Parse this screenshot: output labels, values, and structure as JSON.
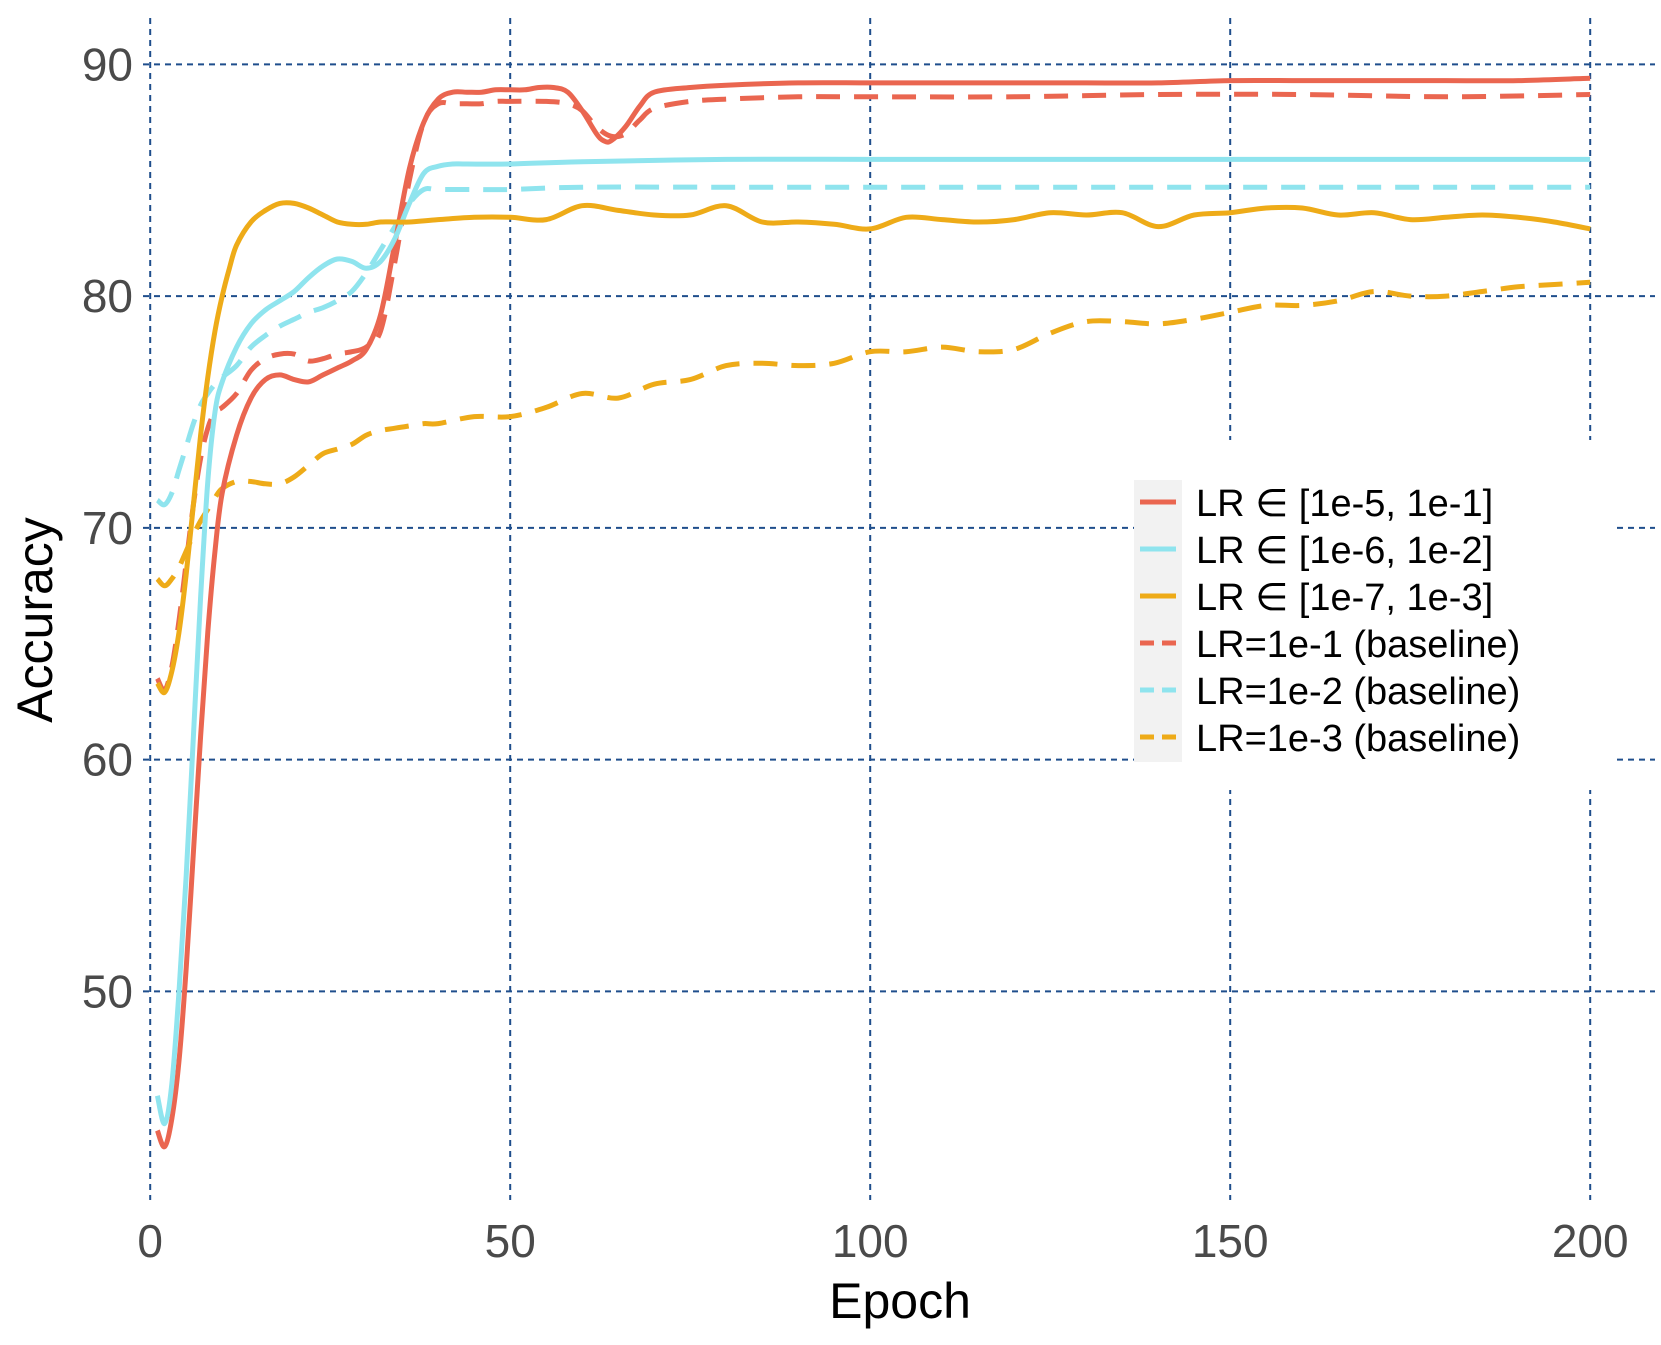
{
  "chart_data": {
    "type": "line",
    "xlabel": "Epoch",
    "ylabel": "Accuracy",
    "xlim": [
      -1,
      209
    ],
    "ylim": [
      41,
      92
    ],
    "xticks": [
      0,
      50,
      100,
      150,
      200
    ],
    "yticks": [
      50,
      60,
      70,
      80,
      90
    ],
    "grid": true,
    "legend_position": "center-right",
    "series": [
      {
        "name": "LR ∈ [1e-5, 1e-1]",
        "color": "#ea6650",
        "style": "solid",
        "x": [
          1,
          2,
          3,
          4,
          5,
          6,
          7,
          8,
          9,
          10,
          12,
          14,
          16,
          18,
          20,
          22,
          24,
          26,
          28,
          30,
          32,
          34,
          36,
          38,
          40,
          42,
          44,
          46,
          48,
          50,
          52,
          54,
          56,
          58,
          60,
          62,
          63,
          64,
          66,
          68,
          70,
          75,
          80,
          90,
          100,
          110,
          120,
          130,
          140,
          150,
          160,
          170,
          180,
          190,
          200
        ],
        "y": [
          44.0,
          43.3,
          44.5,
          47.0,
          51.0,
          56.0,
          61.0,
          65.5,
          69.0,
          71.5,
          74.0,
          75.6,
          76.4,
          76.6,
          76.4,
          76.3,
          76.6,
          76.9,
          77.2,
          77.7,
          79.2,
          82.3,
          85.5,
          87.5,
          88.5,
          88.8,
          88.8,
          88.8,
          88.9,
          88.9,
          88.9,
          89.0,
          89.0,
          88.8,
          88.0,
          87.0,
          86.7,
          86.7,
          87.3,
          88.2,
          88.8,
          89.0,
          89.1,
          89.2,
          89.2,
          89.2,
          89.2,
          89.2,
          89.2,
          89.3,
          89.3,
          89.3,
          89.3,
          89.3,
          89.4
        ]
      },
      {
        "name": "LR ∈ [1e-6, 1e-2]",
        "color": "#8fe4ee",
        "style": "solid",
        "x": [
          1,
          2,
          3,
          4,
          5,
          6,
          7,
          8,
          9,
          10,
          12,
          14,
          16,
          18,
          20,
          22,
          24,
          26,
          28,
          30,
          32,
          34,
          36,
          38,
          40,
          42,
          44,
          50,
          60,
          80,
          100,
          120,
          140,
          160,
          180,
          200
        ],
        "y": [
          45.5,
          44.3,
          46.0,
          50.0,
          55.0,
          61.0,
          67.0,
          72.0,
          75.0,
          76.3,
          77.8,
          78.8,
          79.4,
          79.8,
          80.2,
          80.8,
          81.3,
          81.6,
          81.5,
          81.2,
          81.5,
          82.5,
          84.0,
          85.3,
          85.6,
          85.7,
          85.7,
          85.7,
          85.8,
          85.9,
          85.9,
          85.9,
          85.9,
          85.9,
          85.9,
          85.9
        ]
      },
      {
        "name": "LR ∈ [1e-7, 1e-3]",
        "color": "#eeab18",
        "style": "solid",
        "x": [
          1,
          2,
          3,
          4,
          5,
          6,
          7,
          8,
          9,
          10,
          11,
          12,
          14,
          16,
          18,
          20,
          22,
          24,
          26,
          28,
          30,
          32,
          34,
          36,
          40,
          45,
          50,
          55,
          60,
          65,
          70,
          75,
          80,
          85,
          90,
          95,
          100,
          105,
          110,
          115,
          120,
          125,
          130,
          135,
          140,
          145,
          150,
          155,
          160,
          165,
          170,
          175,
          180,
          185,
          190,
          195,
          200
        ],
        "y": [
          63.3,
          62.9,
          63.8,
          65.5,
          68.0,
          71.0,
          74.0,
          76.5,
          78.5,
          80.0,
          81.2,
          82.2,
          83.2,
          83.7,
          84.0,
          84.0,
          83.8,
          83.5,
          83.2,
          83.1,
          83.1,
          83.2,
          83.2,
          83.2,
          83.3,
          83.4,
          83.4,
          83.3,
          83.9,
          83.7,
          83.5,
          83.5,
          83.9,
          83.2,
          83.2,
          83.1,
          82.9,
          83.4,
          83.3,
          83.2,
          83.3,
          83.6,
          83.5,
          83.6,
          83.0,
          83.5,
          83.6,
          83.8,
          83.8,
          83.5,
          83.6,
          83.3,
          83.4,
          83.5,
          83.4,
          83.2,
          82.9
        ]
      },
      {
        "name": "LR=1e-1 (baseline)",
        "color": "#ea6650",
        "style": "dashed",
        "x": [
          1,
          2,
          3,
          4,
          5,
          6,
          7,
          8,
          9,
          10,
          12,
          14,
          16,
          18,
          20,
          22,
          24,
          26,
          28,
          30,
          32,
          34,
          36,
          38,
          40,
          42,
          44,
          46,
          48,
          50,
          55,
          58,
          60,
          62,
          64,
          66,
          68,
          70,
          75,
          80,
          90,
          100,
          120,
          140,
          160,
          180,
          200
        ],
        "y": [
          63.5,
          63.0,
          64.0,
          66.0,
          68.5,
          71.0,
          73.0,
          74.3,
          75.0,
          75.2,
          75.8,
          76.8,
          77.3,
          77.5,
          77.5,
          77.2,
          77.3,
          77.5,
          77.6,
          77.8,
          78.5,
          81.5,
          85.0,
          87.5,
          88.3,
          88.3,
          88.3,
          88.3,
          88.4,
          88.4,
          88.4,
          88.3,
          88.0,
          87.3,
          86.9,
          87.0,
          87.6,
          88.1,
          88.4,
          88.5,
          88.6,
          88.6,
          88.6,
          88.7,
          88.7,
          88.6,
          88.7
        ]
      },
      {
        "name": "LR=1e-2 (baseline)",
        "color": "#8fe4ee",
        "style": "dashed",
        "x": [
          1,
          2,
          3,
          4,
          5,
          6,
          7,
          8,
          9,
          10,
          12,
          14,
          16,
          18,
          20,
          22,
          24,
          26,
          28,
          30,
          32,
          34,
          36,
          38,
          40,
          45,
          50,
          60,
          80,
          100,
          120,
          140,
          160,
          180,
          200
        ],
        "y": [
          71.2,
          71.0,
          71.5,
          72.5,
          73.5,
          74.5,
          75.3,
          75.8,
          76.2,
          76.5,
          77.0,
          77.8,
          78.3,
          78.7,
          79.0,
          79.3,
          79.5,
          79.8,
          80.2,
          81.0,
          82.0,
          83.0,
          84.0,
          84.6,
          84.6,
          84.6,
          84.6,
          84.7,
          84.7,
          84.7,
          84.7,
          84.7,
          84.7,
          84.7,
          84.7
        ]
      },
      {
        "name": "LR=1e-3 (baseline)",
        "color": "#eeab18",
        "style": "dashed",
        "x": [
          1,
          2,
          3,
          4,
          5,
          6,
          7,
          8,
          9,
          10,
          12,
          14,
          16,
          18,
          20,
          22,
          24,
          26,
          28,
          30,
          32,
          34,
          36,
          38,
          40,
          45,
          50,
          55,
          60,
          65,
          70,
          75,
          80,
          85,
          90,
          95,
          100,
          105,
          110,
          115,
          120,
          125,
          130,
          135,
          140,
          145,
          150,
          155,
          160,
          165,
          170,
          175,
          180,
          185,
          190,
          195,
          200
        ],
        "y": [
          67.8,
          67.5,
          67.8,
          68.3,
          69.0,
          69.7,
          70.3,
          70.8,
          71.3,
          71.7,
          72.0,
          72.0,
          71.9,
          71.9,
          72.2,
          72.7,
          73.2,
          73.4,
          73.6,
          74.0,
          74.2,
          74.3,
          74.4,
          74.5,
          74.5,
          74.8,
          74.8,
          75.2,
          75.8,
          75.6,
          76.2,
          76.4,
          77.0,
          77.1,
          77.0,
          77.1,
          77.6,
          77.6,
          77.8,
          77.6,
          77.7,
          78.4,
          78.9,
          78.9,
          78.8,
          79.0,
          79.3,
          79.6,
          79.6,
          79.8,
          80.2,
          80.0,
          80.0,
          80.2,
          80.4,
          80.5,
          80.6
        ]
      }
    ]
  }
}
